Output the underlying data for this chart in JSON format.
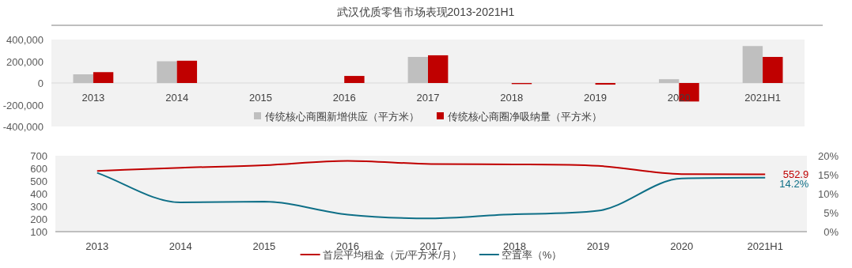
{
  "chart_data": [
    {
      "type": "bar",
      "title": "武汉优质零售市场表现2013-2021H1",
      "categories": [
        "2013",
        "2014",
        "2015",
        "2016",
        "2017",
        "2018",
        "2019",
        "2020",
        "2021H1"
      ],
      "series": [
        {
          "name": "传统核心商圈新增供应（平方米）",
          "color": "#bfbfbf",
          "values": [
            80000,
            200000,
            0,
            0,
            240000,
            0,
            0,
            35000,
            340000
          ]
        },
        {
          "name": "传统核心商圈净吸纳量（平方米）",
          "color": "#c00000",
          "values": [
            100000,
            205000,
            0,
            65000,
            255000,
            -10000,
            -15000,
            -170000,
            240000
          ]
        }
      ],
      "ylim": [
        -400000,
        400000
      ],
      "yticks": [
        {
          "value": -400000,
          "label": "-400,000"
        },
        {
          "value": -200000,
          "label": "-200,000"
        },
        0,
        {
          "value": 200000,
          "label": "200,000"
        },
        {
          "value": 400000,
          "label": "400,000"
        }
      ],
      "legend": "bottom",
      "grid": false
    },
    {
      "type": "line",
      "categories": [
        "2013",
        "2014",
        "2015",
        "2016",
        "2017",
        "2018",
        "2019",
        "2020",
        "2021H1"
      ],
      "series": [
        {
          "name": "首层平均租金（元/平方米/月）",
          "color": "#c00000",
          "values": [
            580,
            605,
            625,
            660,
            635,
            632,
            620,
            555,
            552.9
          ],
          "value_labels": [
            null,
            null,
            null,
            null,
            null,
            null,
            null,
            null,
            "552.9"
          ]
        },
        {
          "name": "空置率（%）",
          "color": "#0e6f87",
          "axis": "y2",
          "values": [
            15.5,
            7.7,
            7.9,
            4.5,
            3.5,
            4.6,
            5.5,
            14.0,
            14.2
          ],
          "value_labels": [
            null,
            null,
            null,
            null,
            null,
            null,
            null,
            null,
            "14.2%"
          ]
        }
      ],
      "ylim": [
        100,
        700
      ],
      "yticks": [
        100,
        200,
        300,
        400,
        500,
        600,
        700
      ],
      "y2lim": [
        0,
        20
      ],
      "y2ticks": [
        {
          "value": 0,
          "label": "0%"
        },
        {
          "value": 5,
          "label": "5%"
        },
        {
          "value": 10,
          "label": "10%"
        },
        {
          "value": 15,
          "label": "15%"
        },
        {
          "value": 20,
          "label": "20%"
        }
      ],
      "legend": "bottom",
      "grid": false,
      "marker": "none",
      "line_style": "solid"
    }
  ]
}
